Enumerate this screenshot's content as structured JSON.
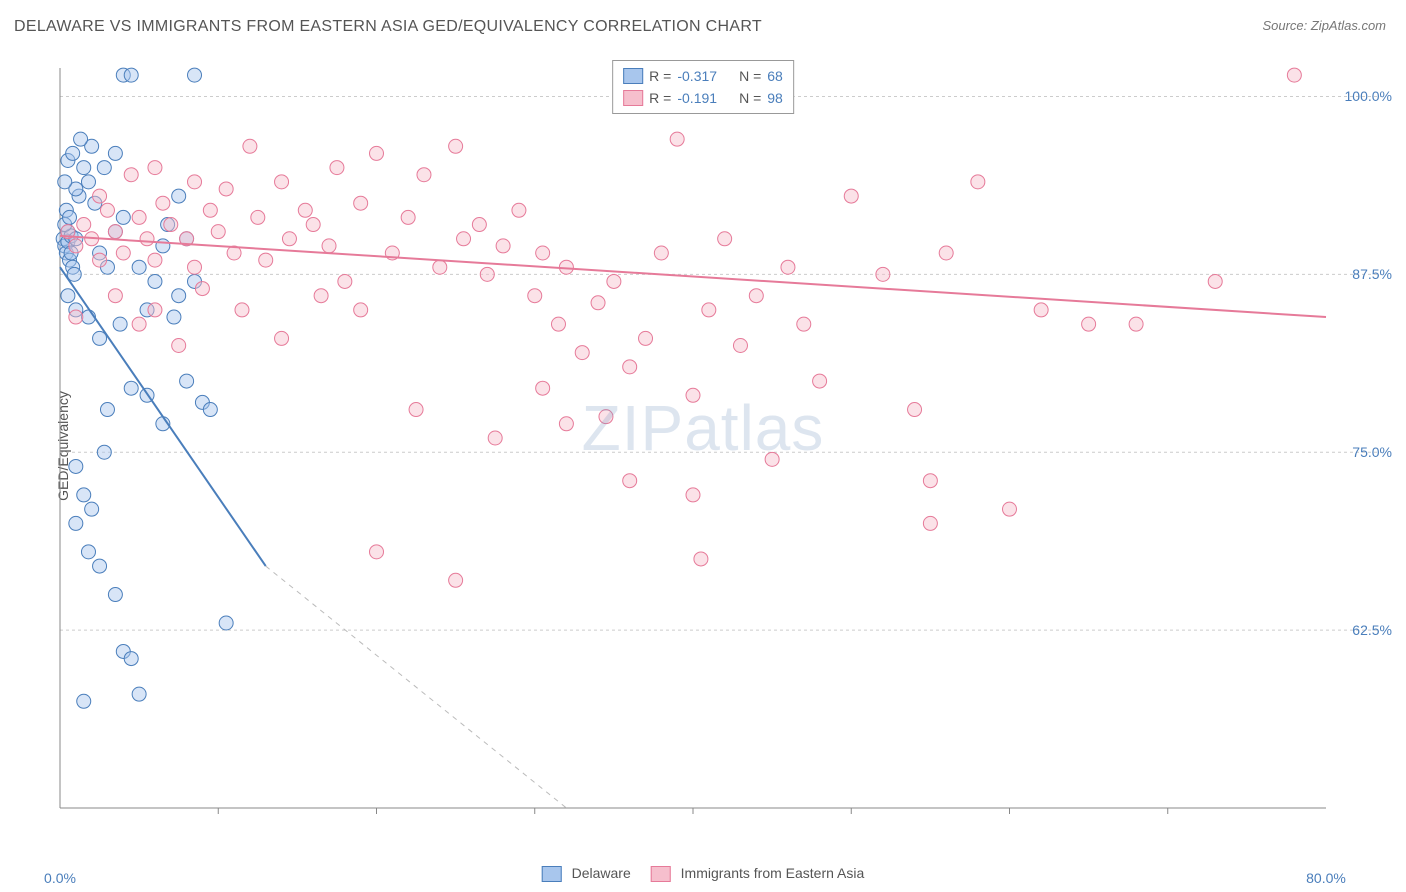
{
  "title": "DELAWARE VS IMMIGRANTS FROM EASTERN ASIA GED/EQUIVALENCY CORRELATION CHART",
  "source": "Source: ZipAtlas.com",
  "ylabel": "GED/Equivalency",
  "watermark": "ZIPatlas",
  "chart": {
    "type": "scatter",
    "background_color": "#ffffff",
    "grid_color": "#cccccc",
    "axis_color": "#888888",
    "xlim": [
      0,
      80
    ],
    "ylim": [
      50,
      102
    ],
    "yticks": [
      62.5,
      75.0,
      87.5,
      100.0
    ],
    "ytick_labels": [
      "62.5%",
      "75.0%",
      "87.5%",
      "100.0%"
    ],
    "xticks": [
      0,
      80
    ],
    "xtick_major": [
      10,
      20,
      30,
      40,
      50,
      60,
      70
    ],
    "xtick_labels": [
      "0.0%",
      "80.0%"
    ],
    "marker_radius": 7,
    "marker_opacity": 0.45,
    "line_width": 2
  },
  "series": [
    {
      "name": "Delaware",
      "color_fill": "#a8c6ed",
      "color_stroke": "#4a7ebb",
      "R": "-0.317",
      "N": "68",
      "trend": {
        "x1": 0,
        "y1": 88.0,
        "x2": 13,
        "y2": 67.0,
        "dash_x2": 32,
        "dash_y2": 50
      },
      "points": [
        [
          0.2,
          90
        ],
        [
          0.3,
          89.5
        ],
        [
          0.4,
          89
        ],
        [
          0.5,
          90.5
        ],
        [
          0.6,
          88.5
        ],
        [
          0.5,
          89.8
        ],
        [
          0.7,
          90.2
        ],
        [
          0.3,
          91
        ],
        [
          0.8,
          88
        ],
        [
          0.9,
          87.5
        ],
        [
          1.0,
          90
        ],
        [
          0.4,
          92
        ],
        [
          0.6,
          91.5
        ],
        [
          0.7,
          89
        ],
        [
          1.2,
          93
        ],
        [
          1.5,
          95
        ],
        [
          2,
          96.5
        ],
        [
          2.8,
          95
        ],
        [
          3.5,
          96
        ],
        [
          4.0,
          101.5
        ],
        [
          4.5,
          101.5
        ],
        [
          1.8,
          94
        ],
        [
          2.2,
          92.5
        ],
        [
          1.0,
          93.5
        ],
        [
          0.5,
          95.5
        ],
        [
          0.3,
          94
        ],
        [
          0.8,
          96
        ],
        [
          1.3,
          97
        ],
        [
          8.5,
          101.5
        ],
        [
          2.5,
          89
        ],
        [
          3.0,
          88
        ],
        [
          3.5,
          90.5
        ],
        [
          4.0,
          91.5
        ],
        [
          5.5,
          85
        ],
        [
          6.0,
          87
        ],
        [
          6.5,
          89.5
        ],
        [
          7.2,
          84.5
        ],
        [
          7.5,
          86
        ],
        [
          8.0,
          90
        ],
        [
          0.5,
          86
        ],
        [
          1.0,
          85
        ],
        [
          1.8,
          84.5
        ],
        [
          2.5,
          83
        ],
        [
          3.0,
          78
        ],
        [
          4.5,
          79.5
        ],
        [
          5.5,
          79
        ],
        [
          6.5,
          77
        ],
        [
          8.0,
          80
        ],
        [
          9.0,
          78.5
        ],
        [
          1.5,
          72
        ],
        [
          2.0,
          71
        ],
        [
          1.8,
          68
        ],
        [
          2.5,
          67
        ],
        [
          1.0,
          70
        ],
        [
          3.5,
          65
        ],
        [
          4.0,
          61
        ],
        [
          4.5,
          60.5
        ],
        [
          5.0,
          58
        ],
        [
          1.5,
          57.5
        ],
        [
          1.0,
          74
        ],
        [
          2.8,
          75
        ],
        [
          10.5,
          63
        ],
        [
          9.5,
          78
        ],
        [
          3.8,
          84
        ],
        [
          5.0,
          88
        ],
        [
          6.8,
          91
        ],
        [
          7.5,
          93
        ],
        [
          8.5,
          87
        ]
      ]
    },
    {
      "name": "Immigrants from Eastern Asia",
      "color_fill": "#f6bfcd",
      "color_stroke": "#e67a99",
      "R": "-0.191",
      "N": "98",
      "trend": {
        "x1": 0,
        "y1": 90.2,
        "x2": 80,
        "y2": 84.5
      },
      "points": [
        [
          0.5,
          90.5
        ],
        [
          1.0,
          89.5
        ],
        [
          1.5,
          91
        ],
        [
          2.0,
          90
        ],
        [
          2.5,
          88.5
        ],
        [
          3.0,
          92
        ],
        [
          3.5,
          90.5
        ],
        [
          4.0,
          89
        ],
        [
          5.0,
          91.5
        ],
        [
          5.5,
          90
        ],
        [
          6.0,
          88.5
        ],
        [
          6.5,
          92.5
        ],
        [
          7.0,
          91
        ],
        [
          8.0,
          90
        ],
        [
          8.5,
          88
        ],
        [
          9.5,
          92
        ],
        [
          10.0,
          90.5
        ],
        [
          11.0,
          89
        ],
        [
          12.0,
          96.5
        ],
        [
          12.5,
          91.5
        ],
        [
          13.0,
          88.5
        ],
        [
          14.0,
          94
        ],
        [
          14.5,
          90
        ],
        [
          15.5,
          92
        ],
        [
          16.0,
          91
        ],
        [
          17.0,
          89.5
        ],
        [
          17.5,
          95
        ],
        [
          18.0,
          87
        ],
        [
          19.0,
          92.5
        ],
        [
          20.0,
          96
        ],
        [
          21.0,
          89
        ],
        [
          22.0,
          91.5
        ],
        [
          23.0,
          94.5
        ],
        [
          24.0,
          88
        ],
        [
          25.0,
          96.5
        ],
        [
          25.5,
          90
        ],
        [
          26.5,
          91
        ],
        [
          27.0,
          87.5
        ],
        [
          28.0,
          89.5
        ],
        [
          29.0,
          92
        ],
        [
          30.0,
          86
        ],
        [
          30.5,
          89
        ],
        [
          31.5,
          84
        ],
        [
          32.0,
          88
        ],
        [
          33.0,
          82
        ],
        [
          34.0,
          85.5
        ],
        [
          35.0,
          87
        ],
        [
          36.0,
          81
        ],
        [
          37.0,
          83
        ],
        [
          38.0,
          89
        ],
        [
          39.0,
          97
        ],
        [
          40.0,
          79
        ],
        [
          41.0,
          85
        ],
        [
          42.0,
          90
        ],
        [
          43.0,
          82.5
        ],
        [
          44.0,
          86
        ],
        [
          45.0,
          74.5
        ],
        [
          46.0,
          88
        ],
        [
          47.0,
          84
        ],
        [
          48.0,
          80
        ],
        [
          50.0,
          93
        ],
        [
          52.0,
          87.5
        ],
        [
          54.0,
          78
        ],
        [
          55.0,
          70
        ],
        [
          56.0,
          89
        ],
        [
          58.0,
          94
        ],
        [
          62.0,
          85
        ],
        [
          65.0,
          84
        ],
        [
          20.0,
          68
        ],
        [
          25.0,
          66
        ],
        [
          32.0,
          77
        ],
        [
          36.0,
          73
        ],
        [
          40.0,
          72
        ],
        [
          55.0,
          73
        ],
        [
          60.0,
          71
        ],
        [
          78.0,
          101.5
        ],
        [
          73.0,
          87
        ],
        [
          68.0,
          84
        ],
        [
          6.0,
          85
        ],
        [
          9.0,
          86.5
        ],
        [
          11.5,
          85
        ],
        [
          14.0,
          83
        ],
        [
          16.5,
          86
        ],
        [
          19.0,
          85
        ],
        [
          22.5,
          78
        ],
        [
          27.5,
          76
        ],
        [
          30.5,
          79.5
        ],
        [
          34.5,
          77.5
        ],
        [
          40.5,
          67.5
        ],
        [
          1.0,
          84.5
        ],
        [
          3.5,
          86
        ],
        [
          5.0,
          84
        ],
        [
          7.5,
          82.5
        ],
        [
          2.5,
          93
        ],
        [
          4.5,
          94.5
        ],
        [
          6.0,
          95
        ],
        [
          8.5,
          94
        ],
        [
          10.5,
          93.5
        ]
      ]
    }
  ]
}
